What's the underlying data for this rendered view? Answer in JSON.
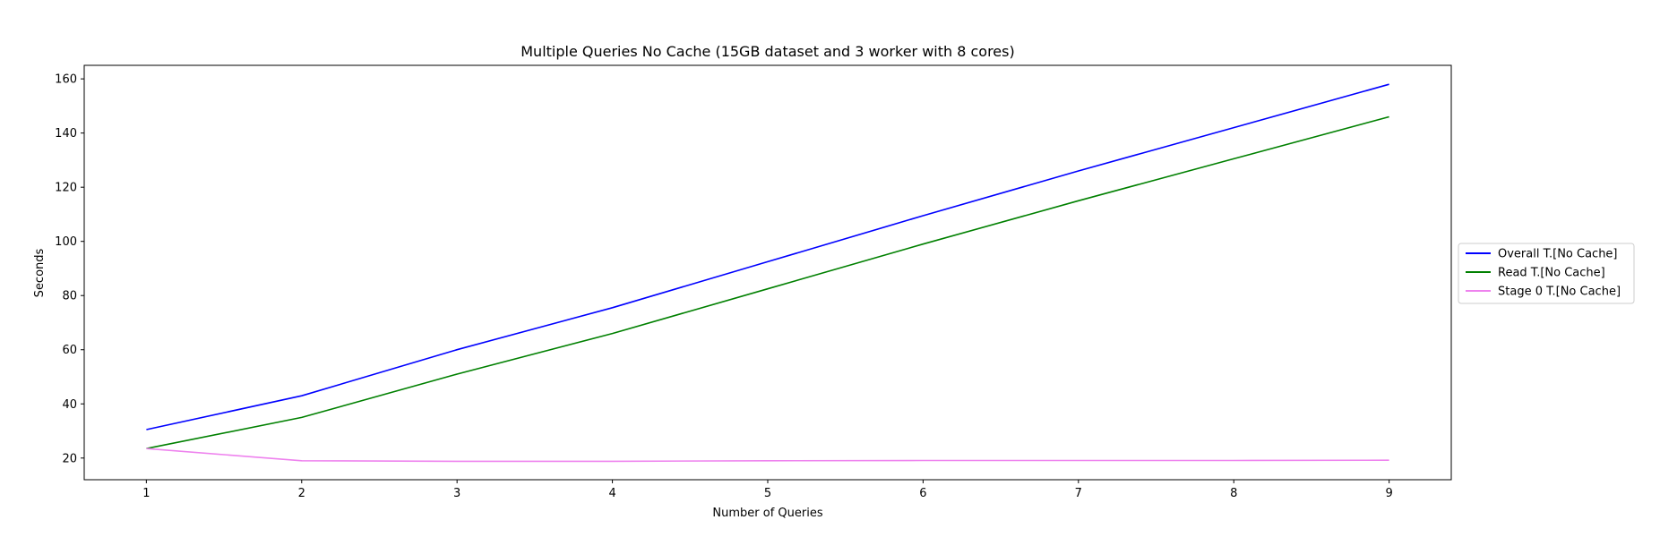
{
  "chart_data": {
    "type": "line",
    "title": "Multiple Queries No Cache (15GB dataset and 3 worker with 8 cores)",
    "xlabel": "Number of Queries",
    "ylabel": "Seconds",
    "x": [
      1,
      2,
      3,
      4,
      5,
      6,
      7,
      8,
      9
    ],
    "xlim": [
      0.6,
      9.4
    ],
    "ylim": [
      12,
      165
    ],
    "xticks": [
      1,
      2,
      3,
      4,
      5,
      6,
      7,
      8,
      9
    ],
    "yticks": [
      20,
      40,
      60,
      80,
      100,
      120,
      140,
      160
    ],
    "grid": false,
    "legend_position": "center-right-outside",
    "series": [
      {
        "name": "Overall T.[No Cache]",
        "color": "#0000ff",
        "values": [
          30.5,
          43,
          60,
          75.5,
          92.5,
          109.5,
          126,
          142,
          158
        ]
      },
      {
        "name": "Read T.[No Cache]",
        "color": "#008000",
        "values": [
          23.5,
          35,
          51,
          66,
          82.5,
          99,
          115,
          130.5,
          146
        ]
      },
      {
        "name": "Stage 0 T.[No Cache]",
        "color": "#ee82ee",
        "values": [
          23.5,
          19,
          18.8,
          18.8,
          19,
          19.1,
          19.1,
          19.1,
          19.2
        ]
      }
    ]
  }
}
